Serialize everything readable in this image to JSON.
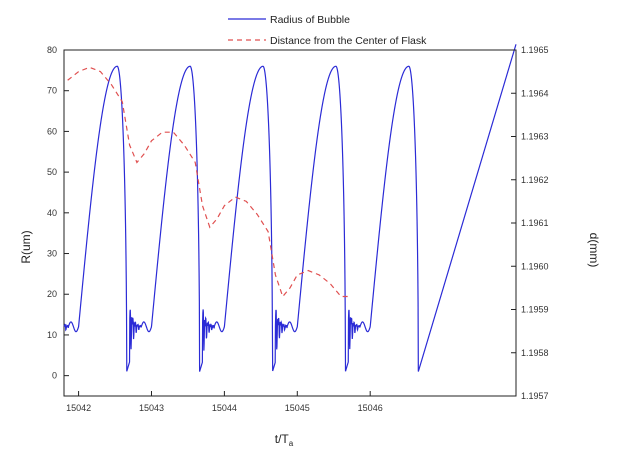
{
  "chart_data": {
    "type": "line",
    "title": "",
    "xlabel": "t/T",
    "xlabel_sub": "a",
    "ylabel_left": "R(um)",
    "ylabel_right": "d(mm)",
    "xlim": [
      15041.8,
      15048.0
    ],
    "x_ticks": [
      "15042",
      "15043",
      "15044",
      "15045",
      "15046"
    ],
    "x_tick_values": [
      15042,
      15043,
      15044,
      15045,
      15046
    ],
    "ylim_left": [
      -5,
      80
    ],
    "y_ticks_left": [
      "0",
      "10",
      "20",
      "30",
      "40",
      "50",
      "60",
      "70",
      "80"
    ],
    "ylim_right": [
      1.1957,
      1.1965
    ],
    "y_ticks_right": [
      "1.1957",
      "1.1958",
      "1.1959",
      "1.1960",
      "1.1961",
      "1.1962",
      "1.1963",
      "1.1964",
      "1.1965"
    ],
    "grid": false,
    "legend_position": "top-center",
    "series": [
      {
        "name": "Radius of Bubble",
        "axis": "left",
        "color": "#2b2bd6",
        "style": "solid",
        "cycle_period": 1.0,
        "cycle_starts": [
          15041.7,
          15042.7,
          15043.7,
          15044.7,
          15045.7
        ],
        "peak_value": 76,
        "peak_phase": 0.83,
        "collapse_phase": 0.96,
        "min_value": 1,
        "afterbounce_max": 17,
        "rest_value": 12
      },
      {
        "name": "Distance from the Center of Flask",
        "axis": "right",
        "color": "#e05050",
        "style": "dashed",
        "x": [
          15041.85,
          15042.0,
          15042.15,
          15042.3,
          15042.45,
          15042.6,
          15042.7,
          15042.8,
          15042.9,
          15043.0,
          15043.15,
          15043.3,
          15043.45,
          15043.6,
          15043.7,
          15043.8,
          15043.9,
          15044.0,
          15044.15,
          15044.3,
          15044.45,
          15044.6,
          15044.7,
          15044.8,
          15044.9,
          15045.0,
          15045.15,
          15045.3,
          15045.45,
          15045.6,
          15045.7
        ],
        "y": [
          1.19643,
          1.19645,
          1.19646,
          1.19645,
          1.19642,
          1.19638,
          1.19628,
          1.19624,
          1.19626,
          1.19629,
          1.19631,
          1.19631,
          1.19628,
          1.19624,
          1.19614,
          1.19609,
          1.19611,
          1.19614,
          1.19616,
          1.19615,
          1.19612,
          1.19608,
          1.19598,
          1.19593,
          1.19595,
          1.19598,
          1.19599,
          1.19598,
          1.19596,
          1.19593,
          1.19593
        ]
      }
    ]
  }
}
